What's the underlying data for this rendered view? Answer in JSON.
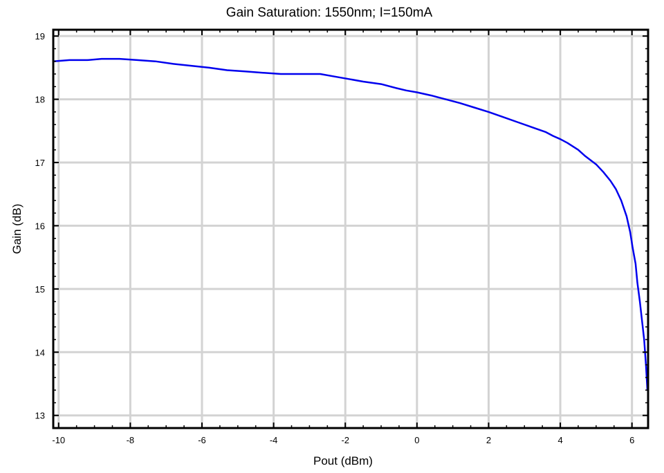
{
  "chart_data": {
    "type": "line",
    "title": "Gain Saturation: 1550nm; I=150mA",
    "xlabel": "Pout (dBm)",
    "ylabel": "Gain (dB)",
    "xlim": [
      -10.15,
      6.45
    ],
    "ylim": [
      12.8,
      19.1
    ],
    "x_ticks": [
      -10,
      -8,
      -6,
      -4,
      -2,
      0,
      2,
      4,
      6
    ],
    "y_ticks": [
      13,
      14,
      15,
      16,
      17,
      18,
      19
    ],
    "x_tick_labels": [
      "-10",
      "-8",
      "-6",
      "-4",
      "-2",
      "0",
      "2",
      "4",
      "6"
    ],
    "y_tick_labels": [
      "13",
      "14",
      "15",
      "16",
      "17",
      "18",
      "19"
    ],
    "grid": true,
    "colors": {
      "series": "#0000ee",
      "grid": "#d3d3d3",
      "frame": "#000000"
    },
    "series": [
      {
        "x": [
          -10.15,
          -9.7,
          -9.2,
          -8.8,
          -8.3,
          -7.8,
          -7.3,
          -6.8,
          -6.3,
          -5.8,
          -5.3,
          -4.8,
          -4.3,
          -3.8,
          -3.3,
          -2.7,
          -2.3,
          -1.9,
          -1.5,
          -1.0,
          -0.6,
          -0.3,
          0.0,
          0.4,
          0.8,
          1.2,
          1.6,
          2.0,
          2.4,
          2.8,
          3.2,
          3.6,
          3.8,
          4.0,
          4.2,
          4.5,
          4.7,
          5.0,
          5.2,
          5.4,
          5.55,
          5.7,
          5.85,
          5.95,
          6.02,
          6.1,
          6.15,
          6.22,
          6.28,
          6.34,
          6.39,
          6.43
        ],
        "y": [
          18.6,
          18.62,
          18.62,
          18.64,
          18.64,
          18.62,
          18.6,
          18.56,
          18.53,
          18.5,
          18.46,
          18.44,
          18.42,
          18.4,
          18.4,
          18.4,
          18.36,
          18.32,
          18.28,
          18.24,
          18.18,
          18.14,
          18.11,
          18.06,
          18.0,
          17.94,
          17.87,
          17.8,
          17.72,
          17.64,
          17.56,
          17.48,
          17.42,
          17.37,
          17.31,
          17.2,
          17.1,
          16.97,
          16.85,
          16.71,
          16.58,
          16.4,
          16.15,
          15.9,
          15.65,
          15.4,
          15.1,
          14.8,
          14.5,
          14.2,
          13.8,
          13.4
        ]
      }
    ]
  }
}
